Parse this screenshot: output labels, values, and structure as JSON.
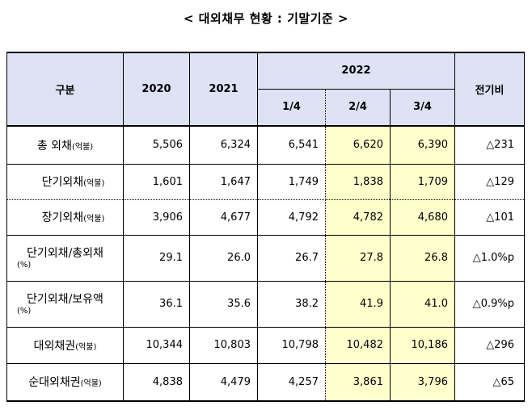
{
  "title": "< 대외채무 현황 : 기말기준 >",
  "header": {
    "category": "구분",
    "y2020": "2020",
    "y2021": "2021",
    "y2022": "2022",
    "q1": "1/4",
    "q2": "2/4",
    "q3": "3/4",
    "prev": "전기비"
  },
  "rows": [
    {
      "label": "총 외채",
      "unit": "(억불)",
      "v2020": "5,506",
      "v2021": "6,324",
      "q1": "6,541",
      "q2": "6,620",
      "q3": "6,390",
      "prev": "△231"
    },
    {
      "label": "단기외채",
      "unit": "(억불)",
      "v2020": "1,601",
      "v2021": "1,647",
      "q1": "1,749",
      "q2": "1,838",
      "q3": "1,709",
      "prev": "△129"
    },
    {
      "label": "장기외채",
      "unit": "(억불)",
      "v2020": "3,906",
      "v2021": "4,677",
      "q1": "4,792",
      "q2": "4,782",
      "q3": "4,680",
      "prev": "△101"
    },
    {
      "label": "단기외채/총외채",
      "unit": "(%)",
      "v2020": "29.1",
      "v2021": "26.0",
      "q1": "26.7",
      "q2": "27.8",
      "q3": "26.8",
      "prev": "△1.0%p"
    },
    {
      "label": "단기외채/보유액",
      "unit": "(%)",
      "v2020": "36.1",
      "v2021": "35.6",
      "q1": "38.2",
      "q2": "41.9",
      "q3": "41.0",
      "prev": "△0.9%p"
    },
    {
      "label": "대외채권",
      "unit": "(억불)",
      "v2020": "10,344",
      "v2021": "10,803",
      "q1": "10,798",
      "q2": "10,482",
      "q3": "10,186",
      "prev": "△296"
    },
    {
      "label": "순대외채권",
      "unit": "(억불)",
      "v2020": "4,838",
      "v2021": "4,479",
      "q1": "4,257",
      "q2": "3,861",
      "q3": "3,796",
      "prev": "△65"
    }
  ],
  "colors": {
    "header_bg": "#dde2f5",
    "highlight_bg": "#ffffcc"
  }
}
